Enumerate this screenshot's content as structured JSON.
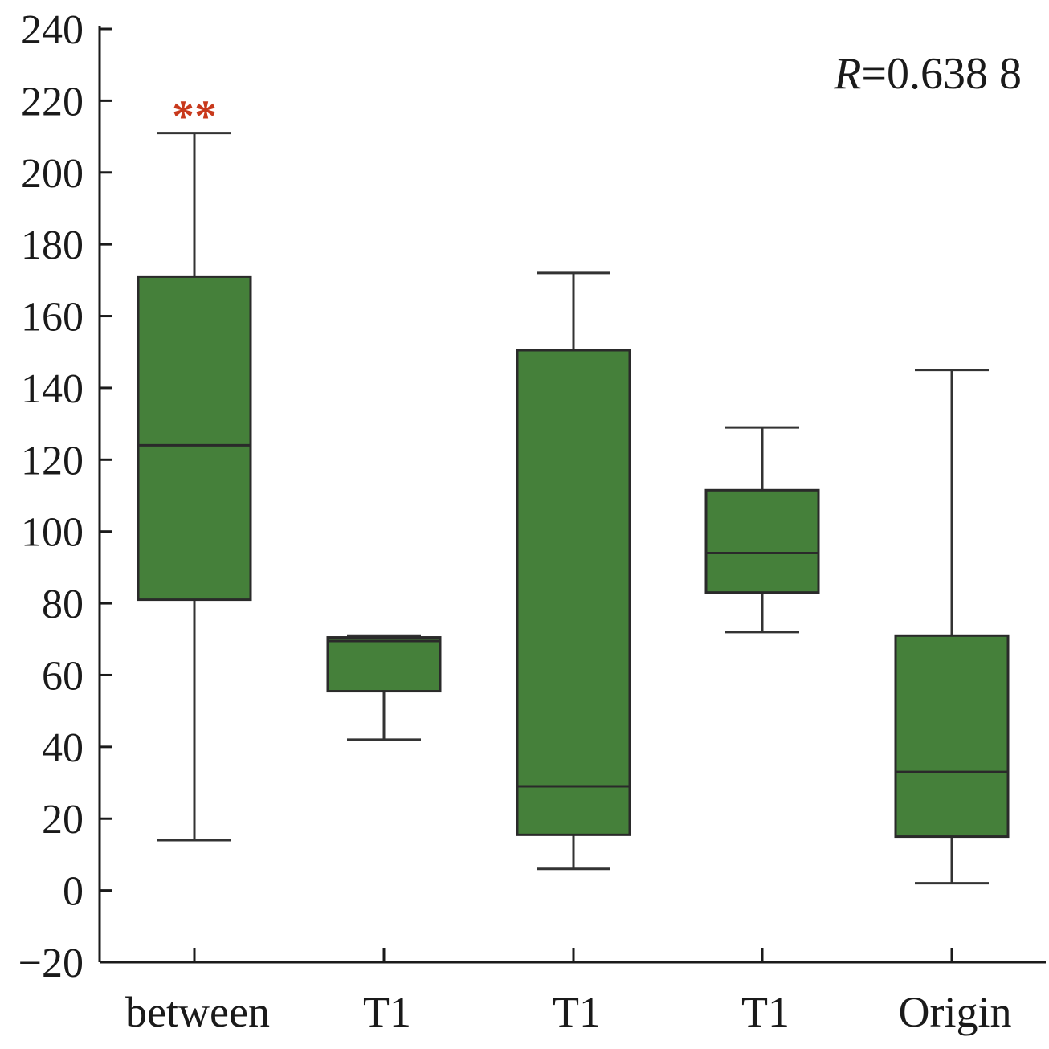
{
  "chart_data": {
    "type": "box",
    "ylim": [
      -20,
      240
    ],
    "yticks": [
      -20,
      0,
      20,
      40,
      60,
      80,
      100,
      120,
      140,
      160,
      180,
      200,
      220,
      240
    ],
    "categories": [
      "between",
      "T1",
      "T1",
      "T1",
      "Origin"
    ],
    "boxes": [
      {
        "label": "between",
        "min": 14,
        "q1": 81,
        "median": 124,
        "q3": 171,
        "max": 211,
        "significance": "**"
      },
      {
        "label": "T1",
        "min": 42,
        "q1": 55.5,
        "median": 69.5,
        "q3": 70.5,
        "max": 71,
        "significance": ""
      },
      {
        "label": "T1",
        "min": 6,
        "q1": 15.5,
        "median": 29,
        "q3": 150.5,
        "max": 172,
        "significance": ""
      },
      {
        "label": "T1",
        "min": 72,
        "q1": 83,
        "median": 94,
        "q3": 111.5,
        "max": 129,
        "significance": ""
      },
      {
        "label": "Origin",
        "min": 2,
        "q1": 15,
        "median": 33,
        "q3": 71,
        "max": 145,
        "significance": ""
      }
    ],
    "annotation": {
      "variable": "R",
      "value": "=0.638 8"
    },
    "colors": {
      "box_fill": "#45803a",
      "box_stroke": "#2a2a2a",
      "whisker": "#333333",
      "significance": "#c8391c",
      "axis": "#1a1a1a"
    },
    "grid": false,
    "legend": "none"
  }
}
